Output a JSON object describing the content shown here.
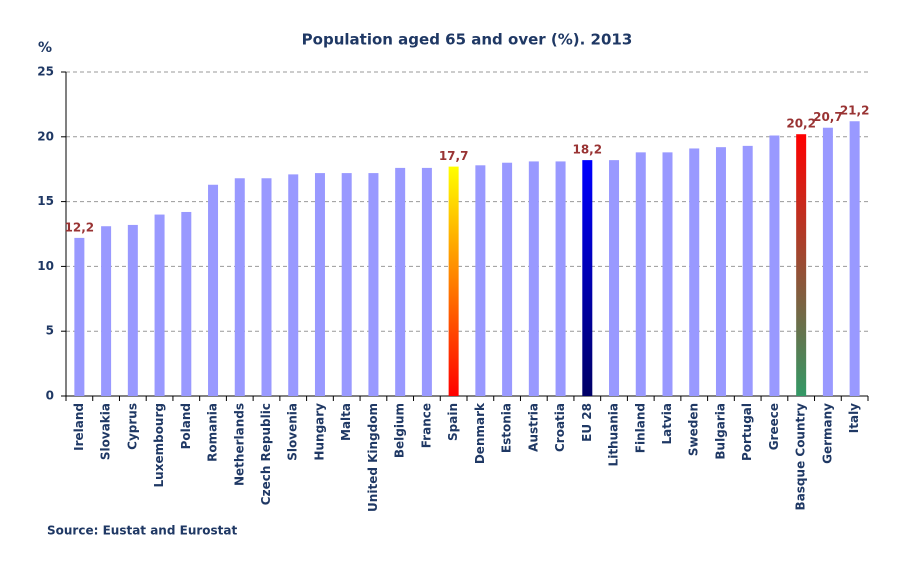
{
  "chart_data": {
    "type": "bar",
    "title": "Population  aged 65 and over (%). 2013",
    "y_label": "%",
    "source": "Source: Eustat and Eurostat",
    "categories": [
      "Ireland",
      "Slovakia",
      "Cyprus",
      "Luxembourg",
      "Poland",
      "Romania",
      "Netherlands",
      "Czech Republic",
      "Slovenia",
      "Hungary",
      "Malta",
      "United Kingdom",
      "Belgium",
      "France",
      "Spain",
      "Denmark",
      "Estonia",
      "Austria",
      "Croatia",
      "EU 28",
      "Lithuania",
      "Finland",
      "Latvia",
      "Sweden",
      "Bulgaria",
      "Portugal",
      "Greece",
      "Basque Country",
      "Germany",
      "Italy"
    ],
    "values": [
      12.2,
      13.1,
      13.2,
      14.0,
      14.2,
      16.3,
      16.8,
      16.8,
      17.1,
      17.2,
      17.2,
      17.2,
      17.6,
      17.6,
      17.7,
      17.8,
      18.0,
      18.1,
      18.1,
      18.2,
      18.2,
      18.8,
      18.8,
      19.1,
      19.2,
      19.3,
      20.1,
      20.2,
      20.7,
      21.2
    ],
    "value_labels": [
      "12,2",
      null,
      null,
      null,
      null,
      null,
      null,
      null,
      null,
      null,
      null,
      null,
      null,
      null,
      "17,7",
      null,
      null,
      null,
      null,
      "18,2",
      null,
      null,
      null,
      null,
      null,
      null,
      null,
      "20,2",
      "20,7",
      "21,2"
    ],
    "color": "#9999ff",
    "highlight_colors": {
      "Spain": [
        "#ffff00",
        "#ff0000"
      ],
      "EU 28": [
        "#0000ff",
        "#000066"
      ],
      "Basque Country": [
        "#ff0000",
        "#339966"
      ]
    },
    "ylim": [
      0,
      25
    ],
    "yticks": [
      0,
      5,
      10,
      15,
      20,
      25
    ],
    "grid": true
  }
}
